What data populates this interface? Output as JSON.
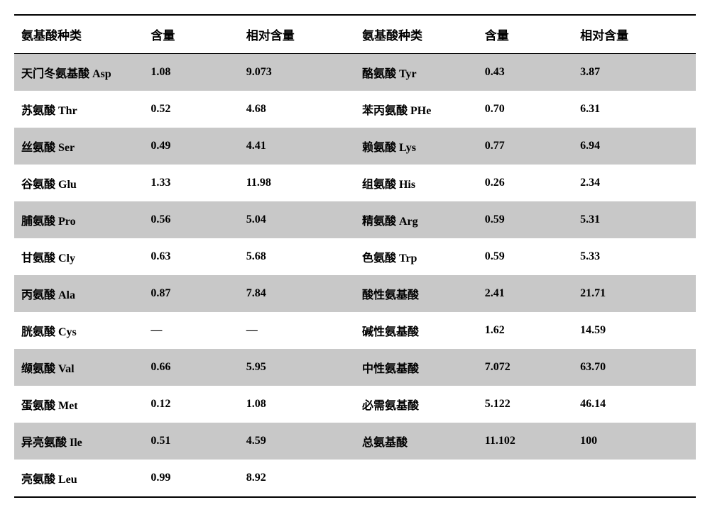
{
  "table": {
    "headers": [
      "氨基酸种类",
      "含量",
      "相对含量",
      "氨基酸种类",
      "含量",
      "相对含量"
    ],
    "rows": [
      {
        "c": [
          "天门冬氨基酸 Asp",
          "1.08",
          "9.073",
          "酪氨酸 Tyr",
          "0.43",
          "3.87"
        ],
        "shade": true
      },
      {
        "c": [
          "苏氨酸 Thr",
          "0.52",
          "4.68",
          "苯丙氨酸 PHe",
          "0.70",
          "6.31"
        ],
        "shade": false
      },
      {
        "c": [
          "丝氨酸 Ser",
          "0.49",
          "4.41",
          "赖氨酸 Lys",
          "0.77",
          "6.94"
        ],
        "shade": true
      },
      {
        "c": [
          "谷氨酸 Glu",
          "1.33",
          "11.98",
          "组氨酸 His",
          "0.26",
          "2.34"
        ],
        "shade": false
      },
      {
        "c": [
          "脯氨酸 Pro",
          "0.56",
          "5.04",
          "精氨酸 Arg",
          "0.59",
          "5.31"
        ],
        "shade": true
      },
      {
        "c": [
          "甘氨酸 Cly",
          "0.63",
          "5.68",
          "色氨酸  Trp",
          "0.59",
          "5.33"
        ],
        "shade": false
      },
      {
        "c": [
          "丙氨酸 Ala",
          "0.87",
          "7.84",
          "酸性氨基酸",
          "2.41",
          "21.71"
        ],
        "shade": true
      },
      {
        "c": [
          "胱氨酸 Cys",
          "—",
          "—",
          "碱性氨基酸",
          "1.62",
          "14.59"
        ],
        "shade": false
      },
      {
        "c": [
          "缬氨酸 Val",
          "0.66",
          "5.95",
          "中性氨基酸",
          "7.072",
          "63.70"
        ],
        "shade": true
      },
      {
        "c": [
          "蛋氨酸 Met",
          "0.12",
          "1.08",
          "必需氨基酸",
          "5.122",
          "46.14"
        ],
        "shade": false
      },
      {
        "c": [
          "异亮氨酸 Ile",
          "0.51",
          "4.59",
          "总氨基酸",
          "11.102",
          "100"
        ],
        "shade": true
      },
      {
        "c": [
          "亮氨酸 Leu",
          "0.99",
          "8.92",
          "",
          "",
          ""
        ],
        "shade": false
      }
    ],
    "colors": {
      "shade_bg": "#c8c8c8",
      "plain_bg": "#ffffff",
      "text": "#000000",
      "border": "#000000"
    },
    "font": {
      "header_size_pt": 13,
      "cell_size_pt": 12,
      "weight": "bold",
      "family": "SimSun"
    }
  }
}
